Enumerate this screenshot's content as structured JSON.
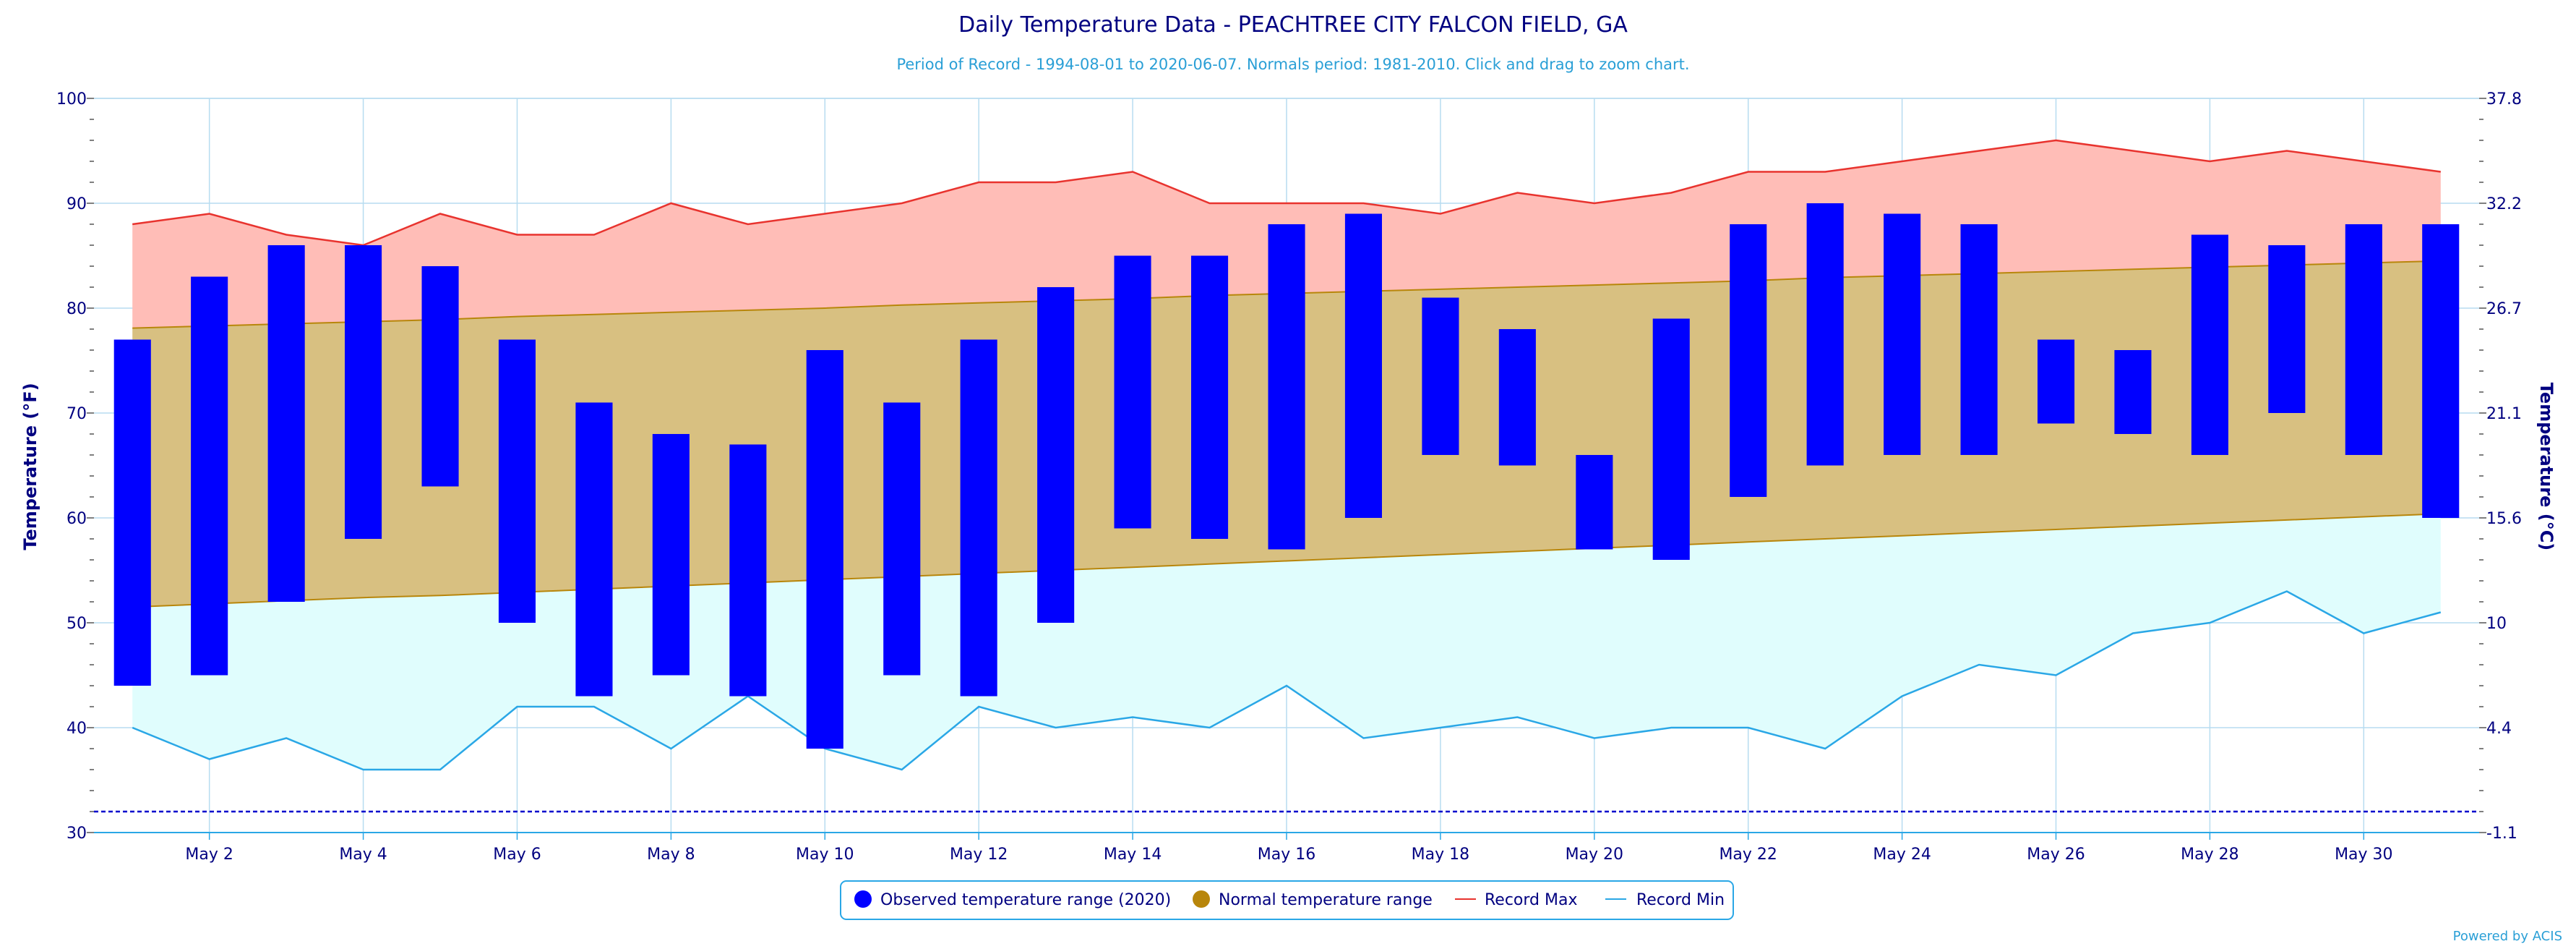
{
  "chart_data": {
    "type": "bar",
    "title": "Daily Temperature Data - PEACHTREE CITY FALCON FIELD, GA",
    "subtitle": "Period of Record - 1994-08-01 to 2020-06-07. Normals period: 1981-2010. Click and drag to zoom chart.",
    "ylabel_left": "Temperature (°F)",
    "ylabel_right": "Temperature (°C)",
    "ylim": [
      30,
      100
    ],
    "y_ticks": [
      30,
      40,
      50,
      60,
      70,
      80,
      90,
      100
    ],
    "y_ticks_right": [
      "-1.1",
      "4.4",
      "10",
      "15.6",
      "21.1",
      "26.7",
      "32.2",
      "37.8"
    ],
    "x_tick_labels": [
      "May 2",
      "May 4",
      "May 6",
      "May 8",
      "May 10",
      "May 12",
      "May 14",
      "May 16",
      "May 18",
      "May 20",
      "May 22",
      "May 24",
      "May 26",
      "May 28",
      "May 30"
    ],
    "x_tick_days": [
      2,
      4,
      6,
      8,
      10,
      12,
      14,
      16,
      18,
      20,
      22,
      24,
      26,
      28,
      30
    ],
    "days": [
      1,
      2,
      3,
      4,
      5,
      6,
      7,
      8,
      9,
      10,
      11,
      12,
      13,
      14,
      15,
      16,
      17,
      18,
      19,
      20,
      21,
      22,
      23,
      24,
      25,
      26,
      27,
      28,
      29,
      30,
      31
    ],
    "observed_max": [
      77,
      83,
      86,
      86,
      84,
      77,
      71,
      68,
      67,
      76,
      71,
      77,
      82,
      85,
      85,
      88,
      89,
      81,
      78,
      66,
      79,
      88,
      90,
      89,
      88,
      77,
      76,
      87,
      86,
      88,
      88
    ],
    "observed_min": [
      44,
      45,
      52,
      58,
      63,
      50,
      43,
      45,
      43,
      38,
      45,
      43,
      50,
      59,
      58,
      57,
      60,
      66,
      65,
      57,
      56,
      62,
      65,
      66,
      66,
      69,
      68,
      66,
      70,
      66,
      60
    ],
    "normal_max": [
      78.1,
      78.3,
      78.5,
      78.7,
      78.9,
      79.2,
      79.4,
      79.6,
      79.8,
      80.0,
      80.3,
      80.5,
      80.7,
      80.9,
      81.2,
      81.4,
      81.6,
      81.8,
      82.0,
      82.2,
      82.4,
      82.6,
      82.9,
      83.1,
      83.3,
      83.5,
      83.7,
      83.9,
      84.1,
      84.3,
      84.5
    ],
    "normal_min": [
      51.5,
      51.8,
      52.1,
      52.4,
      52.6,
      52.9,
      53.2,
      53.5,
      53.8,
      54.1,
      54.4,
      54.7,
      55.0,
      55.3,
      55.6,
      55.9,
      56.2,
      56.5,
      56.8,
      57.1,
      57.4,
      57.7,
      58.0,
      58.3,
      58.6,
      58.9,
      59.2,
      59.5,
      59.8,
      60.1,
      60.4
    ],
    "record_max": [
      88,
      89,
      87,
      86,
      89,
      87,
      87,
      90,
      88,
      89,
      90,
      92,
      92,
      93,
      90,
      90,
      90,
      89,
      91,
      90,
      91,
      93,
      93,
      94,
      95,
      96,
      95,
      94,
      95,
      94,
      93
    ],
    "record_min": [
      40,
      37,
      39,
      36,
      36,
      42,
      42,
      38,
      43,
      38,
      36,
      42,
      40,
      41,
      40,
      44,
      39,
      40,
      41,
      39,
      40,
      40,
      38,
      43,
      46,
      45,
      49,
      50,
      53,
      49,
      51
    ],
    "reference_line": 32,
    "series": [
      {
        "name": "Observed temperature range (2020)",
        "color": "#0000ff"
      },
      {
        "name": "Normal temperature range",
        "color": "#b8860b"
      },
      {
        "name": "Record Max",
        "color": "#e8332e"
      },
      {
        "name": "Record Min",
        "color": "#2aa7e6"
      }
    ],
    "colors": {
      "observed": "#0000ff",
      "normal_fill": "#d8c081",
      "normal_line": "#b8860b",
      "record_max_fill": "#ffbdb7",
      "record_max_line": "#e8332e",
      "record_min_fill": "#e0fdfd",
      "record_min_line": "#2aa7e6",
      "grid": "#b7dcf0",
      "reference": "#0000cc"
    },
    "legend_position": "bottom-center",
    "grid": true
  },
  "credit": "Powered by ACIS"
}
